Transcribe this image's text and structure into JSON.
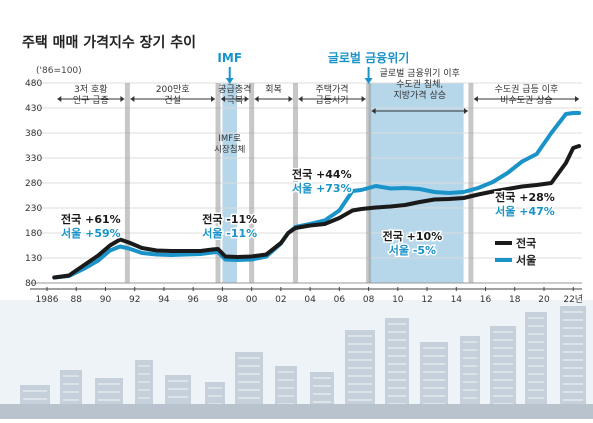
{
  "chart_data": {
    "type": "line",
    "title": "주택 매매 가격지수 장기 추이",
    "ylabel": "('86=100)",
    "yticks": [
      80,
      130,
      180,
      230,
      280,
      330,
      380,
      430,
      480
    ],
    "ylim": [
      80,
      480
    ],
    "xlim": [
      1986,
      2022.6
    ],
    "xticks": [
      {
        "x": 1986,
        "label": "1986"
      },
      {
        "x": 1988,
        "label": "88"
      },
      {
        "x": 1990,
        "label": "90"
      },
      {
        "x": 1992,
        "label": "92"
      },
      {
        "x": 1994,
        "label": "94"
      },
      {
        "x": 1996,
        "label": "96"
      },
      {
        "x": 1998,
        "label": "98"
      },
      {
        "x": 2000,
        "label": "00"
      },
      {
        "x": 2002,
        "label": "02"
      },
      {
        "x": 2004,
        "label": "04"
      },
      {
        "x": 2006,
        "label": "06"
      },
      {
        "x": 2008,
        "label": "08"
      },
      {
        "x": 2010,
        "label": "10"
      },
      {
        "x": 2012,
        "label": "12"
      },
      {
        "x": 2014,
        "label": "14"
      },
      {
        "x": 2016,
        "label": "16"
      },
      {
        "x": 2018,
        "label": "18"
      },
      {
        "x": 2020,
        "label": "20"
      },
      {
        "x": 2022,
        "label": "22년"
      }
    ],
    "dividers": [
      1991.5,
      1997.7,
      2000,
      2003,
      2008,
      2015
    ],
    "shaded": [
      {
        "from": 1998,
        "to": 1999,
        "color": "#a9cfe6"
      },
      {
        "from": 2008,
        "to": 2014.5,
        "color": "#a9cfe6"
      }
    ],
    "periods": [
      {
        "from": 1986.5,
        "to": 1991.5,
        "lines": [
          "3저 호황",
          "인구 급증"
        ]
      },
      {
        "from": 1991.5,
        "to": 1997.7,
        "lines": [
          "200만호",
          "건설"
        ]
      },
      {
        "from": 1997.7,
        "to": 2000,
        "lines": [
          "공급충격",
          "극복"
        ]
      },
      {
        "from": 2000,
        "to": 2003,
        "lines": [
          "회복"
        ]
      },
      {
        "from": 2003,
        "to": 2008,
        "lines": [
          "주택가격",
          "급등시기"
        ]
      },
      {
        "from": 2008,
        "to": 2015,
        "lines": [
          "글로벌 금융위기 이후",
          "수도권 침체,",
          "지방가격 상승"
        ]
      },
      {
        "from": 2015,
        "to": 2022.6,
        "lines": [
          "수도권 급등 이후",
          "비수도권 상승"
        ]
      }
    ],
    "events": [
      {
        "x": 1998.5,
        "label": "IMF"
      },
      {
        "x": 2008,
        "label": "글로벌 금융위기"
      }
    ],
    "imf_note": [
      "IMF로",
      "시장침체"
    ],
    "series": [
      {
        "name": "전국",
        "color": "#1a1a1a",
        "x": [
          1986.5,
          1987.5,
          1988.5,
          1989.5,
          1990.3,
          1991,
          1991.6,
          1992.5,
          1993.5,
          1994.5,
          1995.5,
          1996.5,
          1997.3,
          1997.7,
          1998.2,
          1999,
          2000,
          2001,
          2002,
          2002.5,
          2003,
          2004,
          2005,
          2006,
          2006.9,
          2007.5,
          2008.5,
          2009.5,
          2010.5,
          2011.5,
          2012.5,
          2013.5,
          2014.5,
          2015.5,
          2016.5,
          2017.5,
          2018.5,
          2019.5,
          2020.5,
          2021.5,
          2022,
          2022.4
        ],
        "y": [
          91,
          95,
          115,
          135,
          155,
          167,
          161,
          150,
          145,
          144,
          144,
          144,
          147,
          148,
          133,
          132,
          133,
          137,
          160,
          180,
          190,
          195,
          198,
          210,
          225,
          228,
          231,
          233,
          236,
          242,
          247,
          248,
          250,
          257,
          263,
          268,
          273,
          276,
          280,
          320,
          350,
          354
        ]
      },
      {
        "name": "서울",
        "color": "#1a93c8",
        "x": [
          1986.5,
          1987.5,
          1988.5,
          1989.5,
          1990.3,
          1991,
          1991.6,
          1992.5,
          1993.5,
          1994.5,
          1995.5,
          1996.5,
          1997.3,
          1997.7,
          1998.2,
          1999,
          2000,
          2001,
          2002,
          2002.5,
          2003,
          2004,
          2005,
          2006,
          2006.9,
          2007.5,
          2008.5,
          2009.5,
          2010.5,
          2011.5,
          2012.5,
          2013.5,
          2014.5,
          2015.5,
          2016.5,
          2017.5,
          2018.5,
          2019.5,
          2020.5,
          2021.5,
          2022,
          2022.4
        ],
        "y": [
          91,
          94,
          108,
          125,
          145,
          153,
          149,
          140,
          137,
          136,
          137,
          138,
          141,
          142,
          127,
          126,
          127,
          133,
          159,
          180,
          192,
          198,
          205,
          225,
          264,
          266,
          274,
          269,
          270,
          268,
          262,
          260,
          262,
          270,
          282,
          300,
          323,
          338,
          380,
          418,
          420,
          420
        ]
      }
    ],
    "annotations": [
      {
        "x": 1989,
        "y": 200,
        "lines": [
          "전국 +61%",
          "서울 +59%"
        ]
      },
      {
        "x": 1998.5,
        "y": 200,
        "lines": [
          "전국 -11%",
          "서울 -11%"
        ]
      },
      {
        "x": 2004.8,
        "y": 290,
        "lines": [
          "전국 +44%",
          "서울 +73%"
        ]
      },
      {
        "x": 2011,
        "y": 166,
        "lines": [
          "전국 +10%",
          "서울 -5%"
        ]
      },
      {
        "x": 2018.7,
        "y": 244,
        "lines": [
          "전국 +28%",
          "서울 +47%"
        ]
      }
    ]
  }
}
